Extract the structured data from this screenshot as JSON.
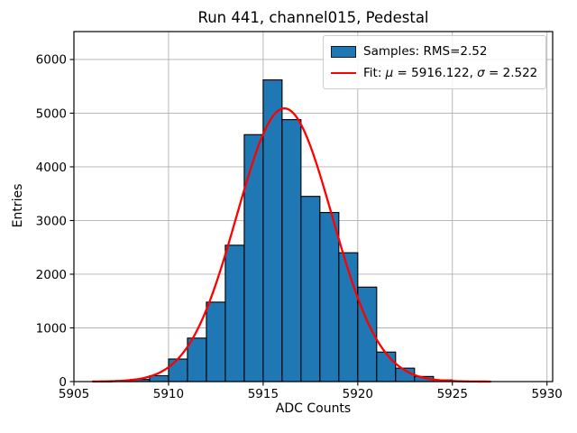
{
  "chart_data": {
    "type": "bar",
    "subtype": "histogram-with-gaussian-fit",
    "title": "Run 441, channel015, Pedestal",
    "xlabel": "ADC Counts",
    "ylabel": "Entries",
    "xlim": [
      5905,
      5930.3
    ],
    "ylim": [
      0,
      6520
    ],
    "xticks": [
      5905,
      5910,
      5915,
      5920,
      5925,
      5930
    ],
    "yticks": [
      0,
      1000,
      2000,
      3000,
      4000,
      5000,
      6000
    ],
    "grid": true,
    "legend_position": "upper right",
    "histogram": {
      "bin_start": 5906,
      "bin_width": 1,
      "counts": [
        3,
        12,
        40,
        110,
        420,
        810,
        1480,
        2540,
        4600,
        5620,
        4880,
        3450,
        3150,
        2400,
        1760,
        550,
        250,
        95,
        30,
        8,
        2
      ],
      "rms": 2.52,
      "fill_color": "#1f77b4",
      "edge_color": "#000000"
    },
    "fit": {
      "mu": 5916.122,
      "sigma": 2.522,
      "peak": 5090,
      "x_start": 5906,
      "x_end": 5927,
      "color": "#ff0000"
    },
    "colors": {
      "grid": "#b0b0b0",
      "spine": "#000000",
      "background": "#ffffff",
      "text": "#000000"
    }
  },
  "legend": {
    "samples_label": "Samples: RMS=2.52",
    "fit_prefix": "Fit: ",
    "mu_symbol": "μ",
    "mu_rest": " = 5916.122, ",
    "sigma_symbol": "σ",
    "sigma_rest": " = 2.522"
  }
}
